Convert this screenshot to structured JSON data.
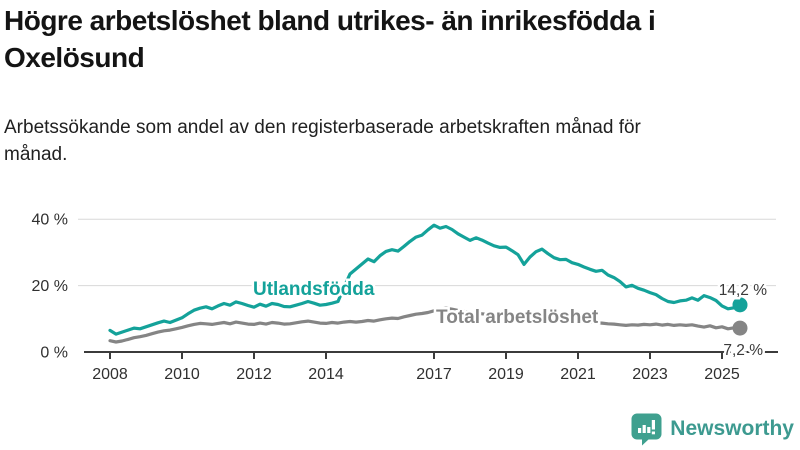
{
  "header": {
    "title": "Högre arbetslöshet bland utrikes- än inrikesfödda i Oxelösund",
    "subtitle": "Arbetssökande som andel av den registerbaserade arbetskraften månad för månad."
  },
  "chart_data": {
    "type": "line",
    "title": "Arbetssökande som andel av den registerbaserade arbetskraften månad för månad",
    "x_unit": "year (monthly series)",
    "x_start": 2008,
    "x_step_years": 0.1666667,
    "x_tick_years": [
      2008,
      2010,
      2012,
      2014,
      2017,
      2019,
      2021,
      2023,
      2025
    ],
    "y_ticks": [
      {
        "value": 0,
        "label": "0 %"
      },
      {
        "value": 20,
        "label": "20 %"
      },
      {
        "value": 40,
        "label": "40 %"
      }
    ],
    "ylim": [
      0,
      42
    ],
    "grid": "horizontal",
    "legend_position": "inline-labels",
    "series": [
      {
        "name": "Utlandsfödda",
        "color": "#14a29a",
        "end_value": 14.2,
        "end_label": "14,2 %",
        "values": [
          6.5,
          5.4,
          6.0,
          6.6,
          7.2,
          7.0,
          7.6,
          8.2,
          8.8,
          9.3,
          8.9,
          9.6,
          10.3,
          11.5,
          12.6,
          13.2,
          13.6,
          13.0,
          13.9,
          14.6,
          14.1,
          15.1,
          14.6,
          14.0,
          13.5,
          14.4,
          13.8,
          14.6,
          14.3,
          13.7,
          13.6,
          14.1,
          14.6,
          15.2,
          14.7,
          14.1,
          14.3,
          14.7,
          15.2,
          19.5,
          23.5,
          25.0,
          26.5,
          28.0,
          27.2,
          29.0,
          30.3,
          30.8,
          30.4,
          31.8,
          33.3,
          34.6,
          35.2,
          36.8,
          38.2,
          37.3,
          37.8,
          36.9,
          35.6,
          34.6,
          33.6,
          34.4,
          33.7,
          32.8,
          32.0,
          31.5,
          31.6,
          30.5,
          29.3,
          26.4,
          28.6,
          30.2,
          31.0,
          29.6,
          28.4,
          27.8,
          27.9,
          26.9,
          26.4,
          25.6,
          24.9,
          24.3,
          24.6,
          23.2,
          22.4,
          21.2,
          19.6,
          20.1,
          19.2,
          18.6,
          17.9,
          17.3,
          16.1,
          15.2,
          14.9,
          15.4,
          15.6,
          16.3,
          15.6,
          17.0,
          16.4,
          15.5,
          13.9,
          13.0,
          13.3,
          14.2
        ]
      },
      {
        "name": "Total arbetslöshet",
        "color": "#858585",
        "end_value": 7.2,
        "end_label": "7,2 %",
        "values": [
          3.4,
          3.0,
          3.3,
          3.8,
          4.3,
          4.6,
          5.0,
          5.5,
          6.0,
          6.4,
          6.6,
          7.0,
          7.4,
          7.9,
          8.3,
          8.6,
          8.5,
          8.3,
          8.6,
          8.9,
          8.5,
          9.0,
          8.7,
          8.4,
          8.3,
          8.7,
          8.4,
          8.9,
          8.7,
          8.4,
          8.5,
          8.8,
          9.1,
          9.3,
          9.0,
          8.7,
          8.6,
          8.9,
          8.7,
          9.0,
          9.2,
          9.0,
          9.2,
          9.5,
          9.3,
          9.7,
          10.0,
          10.2,
          10.1,
          10.6,
          11.0,
          11.4,
          11.6,
          11.9,
          12.4,
          12.9,
          13.2,
          12.9,
          12.5,
          12.2,
          11.9,
          11.7,
          11.5,
          11.3,
          11.1,
          11.0,
          10.9,
          10.7,
          10.4,
          10.1,
          10.3,
          10.6,
          11.0,
          10.8,
          10.5,
          10.2,
          10.0,
          9.7,
          9.5,
          9.2,
          9.0,
          8.8,
          8.7,
          8.5,
          8.4,
          8.2,
          8.0,
          8.2,
          8.1,
          8.3,
          8.2,
          8.4,
          8.1,
          8.3,
          8.0,
          8.2,
          8.0,
          8.2,
          7.8,
          7.5,
          7.9,
          7.3,
          7.6,
          7.0,
          7.3,
          7.2
        ]
      }
    ]
  },
  "branding": {
    "logo_text": "Newsworthy",
    "logo_icon": "bar-chart-speech-bubble-icon",
    "logo_icon_color": "#3fa08f",
    "logo_text_color": "#3d9a90"
  }
}
